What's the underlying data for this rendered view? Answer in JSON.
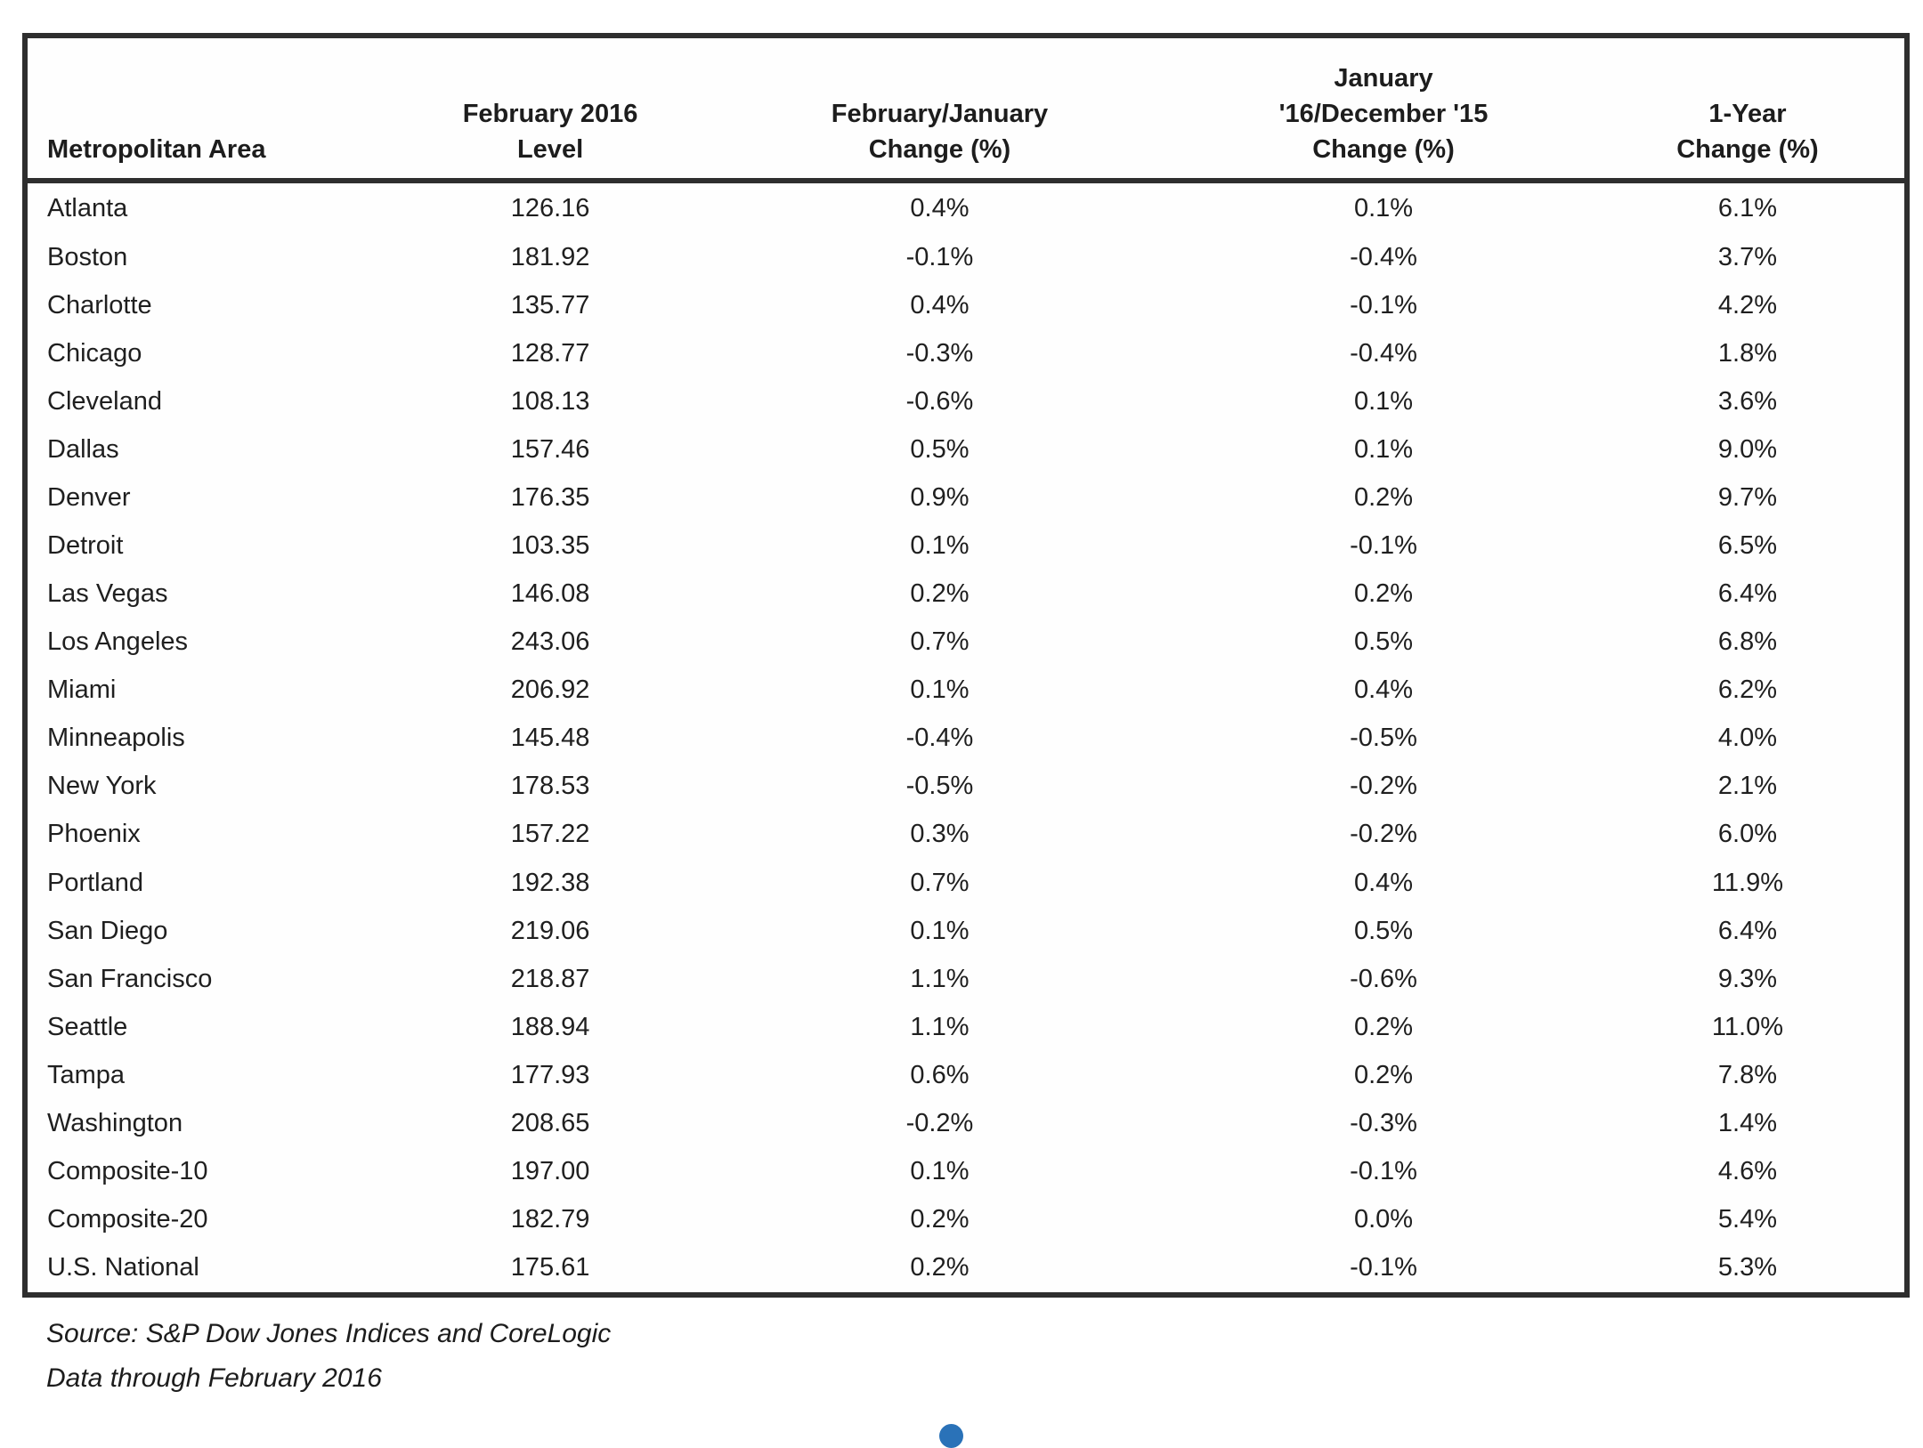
{
  "table": {
    "columns": [
      {
        "id": "metro",
        "label": "Metropolitan Area"
      },
      {
        "id": "level",
        "label": "February 2016\nLevel"
      },
      {
        "id": "mom",
        "label": "February/January\nChange (%)"
      },
      {
        "id": "prev",
        "label": "January\n'16/December '15\nChange (%)"
      },
      {
        "id": "yoy",
        "label": "1-Year\nChange (%)"
      }
    ],
    "rows": [
      {
        "metro": "Atlanta",
        "level": "126.16",
        "mom": "0.4%",
        "prev": "0.1%",
        "yoy": "6.1%"
      },
      {
        "metro": "Boston",
        "level": "181.92",
        "mom": "-0.1%",
        "prev": "-0.4%",
        "yoy": "3.7%"
      },
      {
        "metro": "Charlotte",
        "level": "135.77",
        "mom": "0.4%",
        "prev": "-0.1%",
        "yoy": "4.2%"
      },
      {
        "metro": "Chicago",
        "level": "128.77",
        "mom": "-0.3%",
        "prev": "-0.4%",
        "yoy": "1.8%"
      },
      {
        "metro": "Cleveland",
        "level": "108.13",
        "mom": "-0.6%",
        "prev": "0.1%",
        "yoy": "3.6%"
      },
      {
        "metro": "Dallas",
        "level": "157.46",
        "mom": "0.5%",
        "prev": "0.1%",
        "yoy": "9.0%"
      },
      {
        "metro": "Denver",
        "level": "176.35",
        "mom": "0.9%",
        "prev": "0.2%",
        "yoy": "9.7%"
      },
      {
        "metro": "Detroit",
        "level": "103.35",
        "mom": "0.1%",
        "prev": "-0.1%",
        "yoy": "6.5%"
      },
      {
        "metro": "Las Vegas",
        "level": "146.08",
        "mom": "0.2%",
        "prev": "0.2%",
        "yoy": "6.4%"
      },
      {
        "metro": "Los Angeles",
        "level": "243.06",
        "mom": "0.7%",
        "prev": "0.5%",
        "yoy": "6.8%"
      },
      {
        "metro": "Miami",
        "level": "206.92",
        "mom": "0.1%",
        "prev": "0.4%",
        "yoy": "6.2%"
      },
      {
        "metro": "Minneapolis",
        "level": "145.48",
        "mom": "-0.4%",
        "prev": "-0.5%",
        "yoy": "4.0%"
      },
      {
        "metro": "New York",
        "level": "178.53",
        "mom": "-0.5%",
        "prev": "-0.2%",
        "yoy": "2.1%"
      },
      {
        "metro": "Phoenix",
        "level": "157.22",
        "mom": "0.3%",
        "prev": "-0.2%",
        "yoy": "6.0%"
      },
      {
        "metro": "Portland",
        "level": "192.38",
        "mom": "0.7%",
        "prev": "0.4%",
        "yoy": "11.9%"
      },
      {
        "metro": "San Diego",
        "level": "219.06",
        "mom": "0.1%",
        "prev": "0.5%",
        "yoy": "6.4%"
      },
      {
        "metro": "San Francisco",
        "level": "218.87",
        "mom": "1.1%",
        "prev": "-0.6%",
        "yoy": "9.3%"
      },
      {
        "metro": "Seattle",
        "level": "188.94",
        "mom": "1.1%",
        "prev": "0.2%",
        "yoy": "11.0%"
      },
      {
        "metro": "Tampa",
        "level": "177.93",
        "mom": "0.6%",
        "prev": "0.2%",
        "yoy": "7.8%"
      },
      {
        "metro": "Washington",
        "level": "208.65",
        "mom": "-0.2%",
        "prev": "-0.3%",
        "yoy": "1.4%"
      },
      {
        "metro": "Composite-10",
        "level": "197.00",
        "mom": "0.1%",
        "prev": "-0.1%",
        "yoy": "4.6%"
      },
      {
        "metro": "Composite-20",
        "level": "182.79",
        "mom": "0.2%",
        "prev": "0.0%",
        "yoy": "5.4%"
      },
      {
        "metro": "U.S. National",
        "level": "175.61",
        "mom": "0.2%",
        "prev": "-0.1%",
        "yoy": "5.3%"
      }
    ]
  },
  "footer": {
    "source": "Source: S&P Dow Jones Indices and CoreLogic",
    "data_through": "Data through February 2016"
  },
  "decoration": {
    "blue_dot_color": "#2a72b8"
  }
}
